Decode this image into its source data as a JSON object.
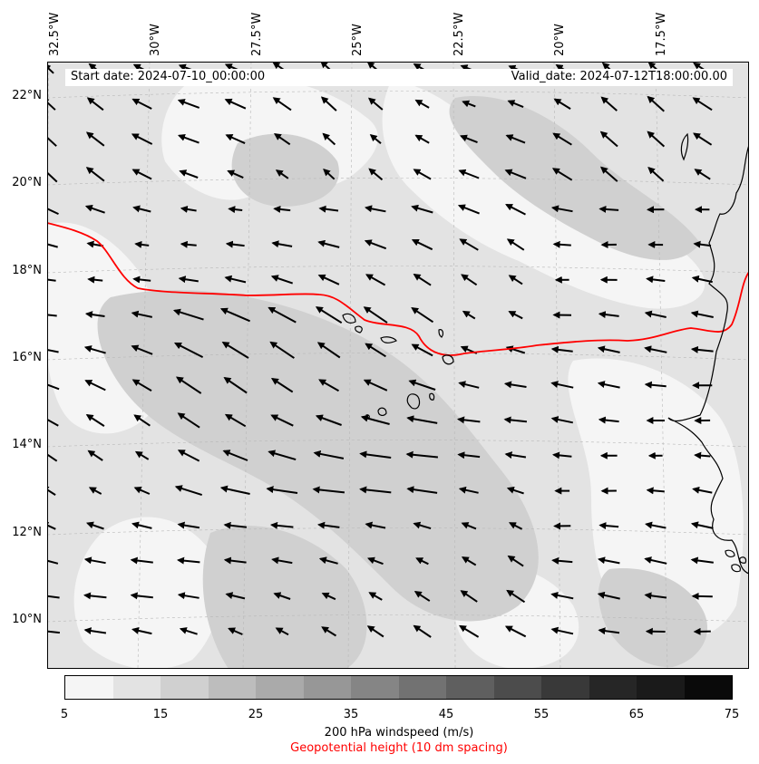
{
  "map": {
    "start_label": "Start date: 2024-07-10_00:00:00",
    "valid_label": "Valid_date: 2024-07-12T18:00:00.00",
    "lon_labels": [
      "32.5°W",
      "30°W",
      "27.5°W",
      "25°W",
      "22.5°W",
      "20°W",
      "17.5°W"
    ],
    "lat_labels": [
      "22°N",
      "20°N",
      "18°N",
      "16°N",
      "14°N",
      "12°N",
      "10°N"
    ],
    "geopotential_contour_color": "#ff0000",
    "coastline_color": "#000000"
  },
  "colorbar": {
    "ticks": [
      "5",
      "15",
      "25",
      "35",
      "45",
      "55",
      "65",
      "75"
    ],
    "colors": [
      "#f5f5f5",
      "#e3e3e3",
      "#d0d0d0",
      "#bdbdbd",
      "#aaaaaa",
      "#979797",
      "#858585",
      "#727272",
      "#5f5f5f",
      "#4c4c4c",
      "#393939",
      "#262626",
      "#1a1a1a",
      "#0a0a0a"
    ],
    "label": "200 hPa windspeed (m/s)",
    "sublabel": "Geopotential height (10 dm spacing)"
  }
}
